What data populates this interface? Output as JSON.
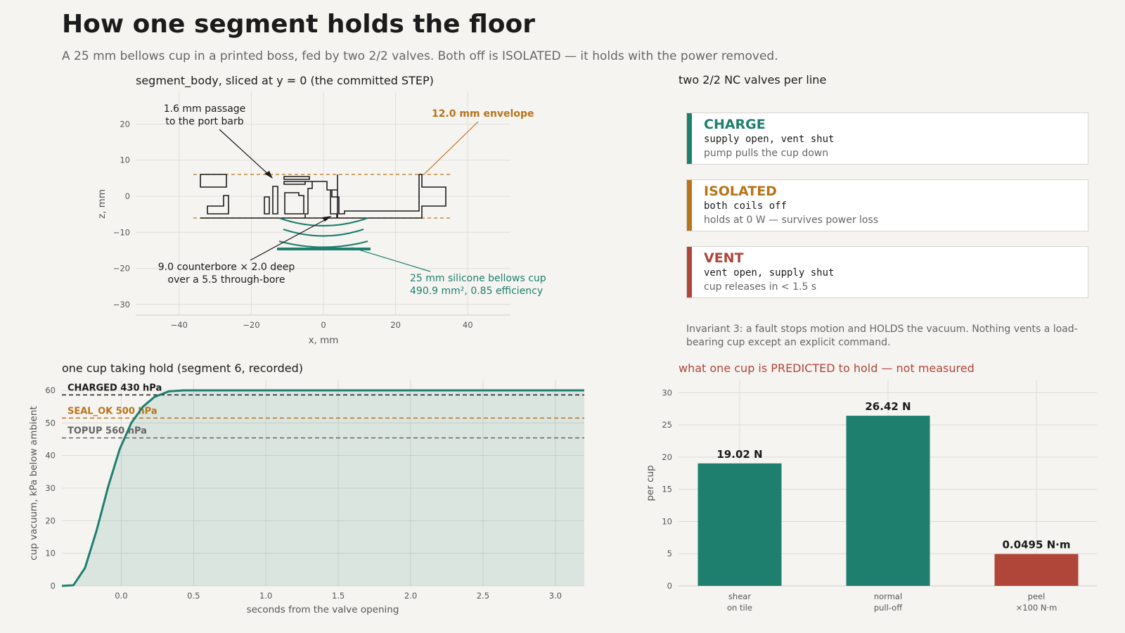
{
  "page": {
    "title": "How one segment holds the floor",
    "subtitle": "A 25 mm bellows cup in a printed boss, fed by two 2/2 valves. Both off is ISOLATED — it holds with the power removed."
  },
  "colors": {
    "teal": "#1e7f6e",
    "amber": "#b8741a",
    "red": "#b0463a",
    "dark": "#1b1b1b",
    "gray": "#666666"
  },
  "section": {
    "title": "segment_body, sliced at y = 0   (the committed STEP)",
    "xlabel": "x, mm",
    "ylabel": "z, mm",
    "annotations": {
      "passage_1": "1.6 mm passage",
      "passage_2": "to the port barb",
      "envelope": "12.0 mm envelope",
      "counterbore_1": "9.0 counterbore × 2.0 deep",
      "counterbore_2": "over a 5.5 through-bore",
      "cup_1": "25 mm silicone bellows cup",
      "cup_2": "490.9 mm², 0.85 efficiency"
    }
  },
  "valves": {
    "title": "two 2/2 NC valves per line",
    "cards": [
      {
        "name": "CHARGE",
        "code": "supply open, vent shut",
        "desc": "pump pulls the cup down",
        "color": "#1e7f6e"
      },
      {
        "name": "ISOLATED",
        "code": "both coils off",
        "desc": "holds at 0 W — survives power loss",
        "color": "#b8741a"
      },
      {
        "name": "VENT",
        "code": "vent open, supply shut",
        "desc": "cup releases in < 1.5 s",
        "color": "#b0463a"
      }
    ],
    "invariant": "Invariant 3: a fault stops motion and HOLDS the vacuum. Nothing vents a load-bearing cup except an explicit command."
  },
  "chart_data": [
    {
      "type": "area",
      "title": "one cup taking hold  (segment 6, recorded)",
      "xlabel": "seconds from the valve opening",
      "ylabel": "cup vacuum, kPa below ambient",
      "xlim": [
        -0.41,
        3.2
      ],
      "ylim": [
        0,
        60
      ],
      "xticks": [
        "0.0",
        "0.5",
        "1.0",
        "1.5",
        "2.0",
        "2.5",
        "3.0"
      ],
      "yticks": [
        "0",
        "10",
        "20",
        "30",
        "40",
        "50",
        "60"
      ],
      "x": [
        -0.41,
        -0.33,
        -0.25,
        -0.17,
        -0.09,
        -0.01,
        0.07,
        0.15,
        0.23,
        0.33,
        0.43,
        3.2
      ],
      "y": [
        0,
        0.2,
        5.5,
        17,
        30.5,
        42,
        50,
        55,
        58,
        59.7,
        60,
        60
      ],
      "thresholds": [
        {
          "label": "CHARGED 430 hPa",
          "value": 58.6,
          "color": "#1b1b1b"
        },
        {
          "label": "SEAL_OK 500 hPa",
          "value": 51.5,
          "color": "#b8741a"
        },
        {
          "label": "TOPUP 560 hPa",
          "value": 45.4,
          "color": "#666666"
        }
      ]
    },
    {
      "type": "bar",
      "title": "what one cup is PREDICTED to hold — not measured",
      "ylabel": "per cup",
      "ylim": [
        0,
        32
      ],
      "yticks": [
        "0",
        "5",
        "10",
        "15",
        "20",
        "25",
        "30"
      ],
      "categories": [
        {
          "line1": "shear",
          "line2": "on tile"
        },
        {
          "line1": "normal",
          "line2": "pull-off"
        },
        {
          "line1": "peel",
          "line2": "×100 N·m"
        }
      ],
      "values": [
        19.02,
        26.42,
        4.95
      ],
      "value_labels": [
        "19.02 N",
        "26.42 N",
        "0.0495 N·m"
      ],
      "bar_colors": [
        "#1e7f6e",
        "#1e7f6e",
        "#b0463a"
      ]
    }
  ]
}
